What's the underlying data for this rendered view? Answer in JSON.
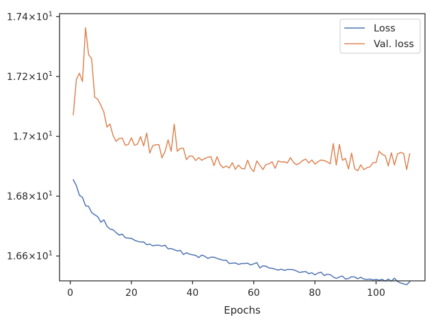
{
  "chart_data": {
    "type": "line",
    "title": "",
    "xlabel": "Epochs",
    "ylabel": "",
    "xlim": [
      -3.5,
      116
    ],
    "ylim": [
      16.517,
      17.41
    ],
    "x_ticks": [
      {
        "value": 0,
        "label": "0"
      },
      {
        "value": 20,
        "label": "20"
      },
      {
        "value": 40,
        "label": "40"
      },
      {
        "value": 60,
        "label": "60"
      },
      {
        "value": 80,
        "label": "80"
      },
      {
        "value": 100,
        "label": "100"
      }
    ],
    "y_ticks": [
      {
        "value": 16.6,
        "base": "1.66",
        "exp": "1"
      },
      {
        "value": 16.8,
        "base": "1.68",
        "exp": "1"
      },
      {
        "value": 17.0,
        "base": "1.7",
        "exp": "1"
      },
      {
        "value": 17.2,
        "base": "1.72",
        "exp": "1"
      },
      {
        "value": 17.4,
        "base": "1.74",
        "exp": "1"
      }
    ],
    "y_tick_times": "×10",
    "legend_position": "upper right",
    "series": [
      {
        "name": "Loss",
        "color": "#4c72b0",
        "x": [
          1,
          2,
          3,
          4,
          5,
          6,
          7,
          8,
          9,
          10,
          11,
          12,
          13,
          14,
          15,
          16,
          17,
          18,
          19,
          20,
          21,
          22,
          23,
          24,
          25,
          26,
          27,
          28,
          29,
          30,
          31,
          32,
          33,
          34,
          35,
          36,
          37,
          38,
          39,
          40,
          41,
          42,
          43,
          44,
          45,
          46,
          47,
          48,
          49,
          50,
          51,
          52,
          53,
          54,
          55,
          56,
          57,
          58,
          59,
          60,
          61,
          62,
          63,
          64,
          65,
          66,
          67,
          68,
          69,
          70,
          71,
          72,
          73,
          74,
          75,
          76,
          77,
          78,
          79,
          80,
          81,
          82,
          83,
          84,
          85,
          86,
          87,
          88,
          89,
          90,
          91,
          92,
          93,
          94,
          95,
          96,
          97,
          98,
          99,
          100,
          101,
          102,
          103,
          104,
          105,
          106,
          107,
          108,
          109,
          110,
          111
        ],
        "values": [
          16.855,
          16.835,
          16.803,
          16.796,
          16.768,
          16.766,
          16.745,
          16.738,
          16.731,
          16.713,
          16.721,
          16.7,
          16.69,
          16.688,
          16.678,
          16.67,
          16.673,
          16.661,
          16.66,
          16.659,
          16.653,
          16.649,
          16.647,
          16.647,
          16.638,
          16.64,
          16.634,
          16.636,
          16.636,
          16.633,
          16.636,
          16.624,
          16.625,
          16.621,
          16.617,
          16.619,
          16.605,
          16.611,
          16.606,
          16.604,
          16.602,
          16.595,
          16.603,
          16.599,
          16.592,
          16.596,
          16.596,
          16.592,
          16.589,
          16.586,
          16.586,
          16.575,
          16.576,
          16.577,
          16.572,
          16.575,
          16.575,
          16.576,
          16.57,
          16.574,
          16.578,
          16.56,
          16.567,
          16.566,
          16.56,
          16.559,
          16.556,
          16.553,
          16.556,
          16.552,
          16.555,
          16.555,
          16.554,
          16.55,
          16.545,
          16.547,
          16.548,
          16.541,
          16.544,
          16.537,
          16.543,
          16.546,
          16.535,
          16.539,
          16.538,
          16.53,
          16.525,
          16.53,
          16.533,
          16.523,
          16.525,
          16.531,
          16.53,
          16.524,
          16.529,
          16.523,
          16.522,
          16.523,
          16.52,
          16.522,
          16.519,
          16.522,
          16.516,
          16.523,
          16.516,
          16.526,
          16.515,
          16.51,
          16.507,
          16.504,
          16.514
        ]
      },
      {
        "name": "Val. loss",
        "color": "#dd8452",
        "x": [
          1,
          2,
          3,
          4,
          5,
          6,
          7,
          8,
          9,
          10,
          11,
          12,
          13,
          14,
          15,
          16,
          17,
          18,
          19,
          20,
          21,
          22,
          23,
          24,
          25,
          26,
          27,
          28,
          29,
          30,
          31,
          32,
          33,
          34,
          35,
          36,
          37,
          38,
          39,
          40,
          41,
          42,
          43,
          44,
          45,
          46,
          47,
          48,
          49,
          50,
          51,
          52,
          53,
          54,
          55,
          56,
          57,
          58,
          59,
          60,
          61,
          62,
          63,
          64,
          65,
          66,
          67,
          68,
          69,
          70,
          71,
          72,
          73,
          74,
          75,
          76,
          77,
          78,
          79,
          80,
          81,
          82,
          83,
          84,
          85,
          86,
          87,
          88,
          89,
          90,
          91,
          92,
          93,
          94,
          95,
          96,
          97,
          98,
          99,
          100,
          101,
          102,
          103,
          104,
          105,
          106,
          107,
          108,
          109,
          110,
          111
        ],
        "values": [
          17.072,
          17.19,
          17.211,
          17.183,
          17.363,
          17.273,
          17.259,
          17.131,
          17.124,
          17.104,
          17.081,
          17.031,
          17.041,
          17.003,
          16.983,
          16.993,
          16.994,
          16.97,
          16.973,
          16.995,
          16.97,
          16.974,
          16.999,
          16.968,
          17.011,
          16.944,
          16.969,
          16.972,
          16.972,
          16.928,
          16.95,
          16.988,
          16.95,
          17.041,
          16.95,
          16.96,
          16.96,
          16.922,
          16.934,
          16.934,
          16.919,
          16.929,
          16.92,
          16.926,
          16.93,
          16.932,
          16.902,
          16.932,
          16.906,
          16.895,
          16.901,
          16.894,
          16.912,
          16.89,
          16.904,
          16.893,
          16.891,
          16.92,
          16.894,
          16.882,
          16.918,
          16.903,
          16.889,
          16.906,
          16.908,
          16.915,
          16.893,
          16.918,
          16.914,
          16.915,
          16.911,
          16.929,
          16.913,
          16.905,
          16.91,
          16.919,
          16.924,
          16.911,
          16.921,
          16.907,
          16.915,
          16.921,
          16.919,
          16.915,
          16.908,
          16.976,
          16.904,
          16.973,
          16.92,
          16.926,
          16.891,
          16.944,
          16.892,
          16.885,
          16.905,
          16.889,
          16.895,
          16.898,
          16.912,
          16.912,
          16.95,
          16.94,
          16.935,
          16.901,
          16.945,
          16.904,
          16.941,
          16.946,
          16.943,
          16.889,
          16.942
        ]
      }
    ]
  }
}
